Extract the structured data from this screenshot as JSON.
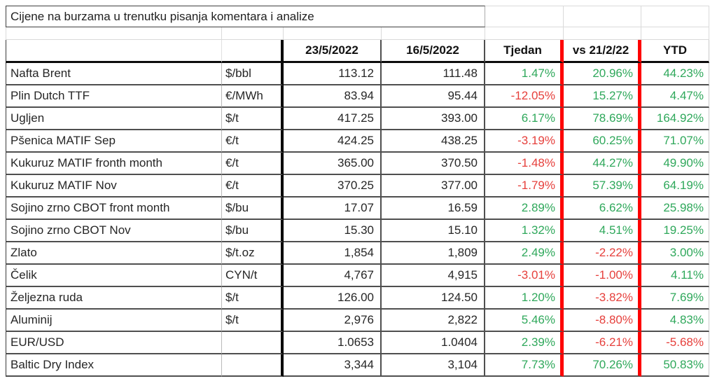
{
  "title": "Cijene na burzama u trenutku pisanja komentara i analize",
  "columns": [
    "23/5/2022",
    "16/5/2022",
    "Tjedan",
    "vs 21/2/22",
    "YTD"
  ],
  "colors": {
    "positive_text": "#2fa85b",
    "negative_text": "#e6403c",
    "red_separator": "#fe0000",
    "grid_dark": "#4f4f4f",
    "grid_light": "#dadada"
  },
  "rows": [
    {
      "name": "Nafta Brent",
      "unit": "$/bbl",
      "v1": "113.12",
      "v2": "111.48",
      "tjedan": "1.47%",
      "vs": "20.96%",
      "ytd": "44.23%"
    },
    {
      "name": "Plin Dutch TTF",
      "unit": "€/MWh",
      "v1": "83.94",
      "v2": "95.44",
      "tjedan": "-12.05%",
      "vs": "15.27%",
      "ytd": "4.47%"
    },
    {
      "name": "Ugljen",
      "unit": "$/t",
      "v1": "417.25",
      "v2": "393.00",
      "tjedan": "6.17%",
      "vs": "78.69%",
      "ytd": "164.92%"
    },
    {
      "name": "Pšenica MATIF Sep",
      "unit": "€/t",
      "v1": "424.25",
      "v2": "438.25",
      "tjedan": "-3.19%",
      "vs": "60.25%",
      "ytd": "71.07%"
    },
    {
      "name": "Kukuruz MATIF fronth month",
      "unit": "€/t",
      "v1": "365.00",
      "v2": "370.50",
      "tjedan": "-1.48%",
      "vs": "44.27%",
      "ytd": "49.90%"
    },
    {
      "name": "Kukuruz MATIF Nov",
      "unit": "€/t",
      "v1": "370.25",
      "v2": "377.00",
      "tjedan": "-1.79%",
      "vs": "57.39%",
      "ytd": "64.19%"
    },
    {
      "name": "Sojino zrno CBOT front month",
      "unit": "$/bu",
      "v1": "17.07",
      "v2": "16.59",
      "tjedan": "2.89%",
      "vs": "6.62%",
      "ytd": "25.98%"
    },
    {
      "name": "Sojino zrno CBOT Nov",
      "unit": "$/bu",
      "v1": "15.30",
      "v2": "15.10",
      "tjedan": "1.32%",
      "vs": "4.51%",
      "ytd": "19.25%"
    },
    {
      "name": "Zlato",
      "unit": "$/t.oz",
      "v1": "1,854",
      "v2": "1,809",
      "tjedan": "2.49%",
      "vs": "-2.22%",
      "ytd": "3.00%"
    },
    {
      "name": "Čelik",
      "unit": "CYN/t",
      "v1": "4,767",
      "v2": "4,915",
      "tjedan": "-3.01%",
      "vs": "-1.00%",
      "ytd": "4.11%"
    },
    {
      "name": "Željezna ruda",
      "unit": "$/t",
      "v1": "126.00",
      "v2": "124.50",
      "tjedan": "1.20%",
      "vs": "-3.82%",
      "ytd": "7.69%"
    },
    {
      "name": "Aluminij",
      "unit": "$/t",
      "v1": "2,976",
      "v2": "2,822",
      "tjedan": "5.46%",
      "vs": "-8.80%",
      "ytd": "4.83%"
    },
    {
      "name": "EUR/USD",
      "unit": "",
      "v1": "1.0653",
      "v2": "1.0404",
      "tjedan": "2.39%",
      "vs": "-6.21%",
      "ytd": "-5.68%"
    },
    {
      "name": "Baltic Dry Index",
      "unit": "",
      "v1": "3,344",
      "v2": "3,104",
      "tjedan": "7.73%",
      "vs": "70.26%",
      "ytd": "50.83%"
    }
  ]
}
